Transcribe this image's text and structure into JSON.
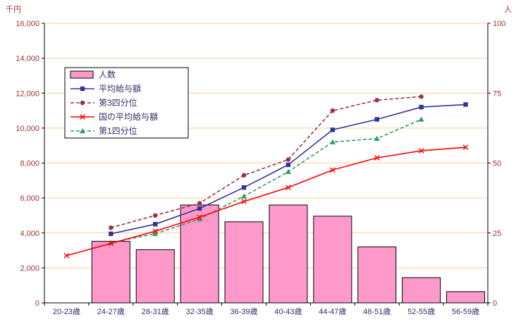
{
  "chart_data": {
    "type": "combo-bar-line",
    "categories": [
      "20-23歳",
      "24-27歳",
      "28-31歳",
      "32-35歳",
      "36-39歳",
      "40-43歳",
      "44-47歳",
      "48-51歳",
      "52-55歳",
      "56-59歳"
    ],
    "bar_series": {
      "name": "人数",
      "axis": "right",
      "values": [
        0,
        22,
        19,
        35,
        29,
        35,
        31,
        20,
        9,
        4
      ]
    },
    "line_series": [
      {
        "name": "平均給与額",
        "axis": "left",
        "style": "solid",
        "marker": "square",
        "color": "#333399",
        "values": [
          null,
          3950,
          4500,
          5400,
          6600,
          7900,
          9900,
          10500,
          11200,
          11350
        ]
      },
      {
        "name": "第3四分位",
        "axis": "left",
        "style": "dashed",
        "marker": "circle",
        "color": "#993344",
        "values": [
          null,
          4300,
          5000,
          5700,
          7300,
          8200,
          11000,
          11600,
          11800,
          null
        ]
      },
      {
        "name": "国の平均給与額",
        "axis": "left",
        "style": "solid",
        "marker": "x",
        "color": "#FF0000",
        "values": [
          2700,
          3400,
          4100,
          4900,
          5800,
          6600,
          7600,
          8300,
          8700,
          8900
        ]
      },
      {
        "name": "第1四分位",
        "axis": "left",
        "style": "dashed",
        "marker": "triangle",
        "color": "#339966",
        "values": [
          null,
          3450,
          3950,
          4800,
          6100,
          7500,
          9200,
          9400,
          10500,
          null
        ]
      }
    ],
    "left_axis": {
      "label": "千円",
      "min": 0,
      "max": 16000,
      "step": 2000
    },
    "right_axis": {
      "label": "人",
      "min": 0,
      "max": 100,
      "step": 25
    },
    "legend_position": "top-left-inside",
    "grid": "horizontal"
  },
  "colors": {
    "bar_fill": "#FF99CC",
    "bar_border": "#000000",
    "grid": "#FFCC99",
    "left_axis_text": "#993333",
    "right_axis_text": "#993333",
    "x_axis_text": "#333366",
    "legend_text": "#333366",
    "axis_line": "#000000",
    "background": "#FFFFFF"
  }
}
